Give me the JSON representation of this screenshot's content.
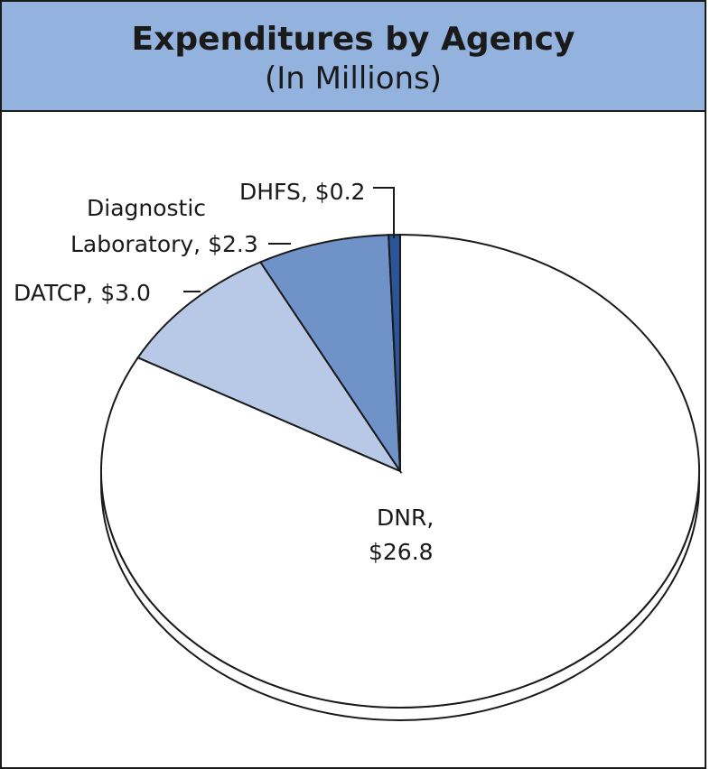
{
  "chart_data": {
    "type": "pie",
    "title": "Expenditures by Agency",
    "subtitle": "(In Millions)",
    "slices": [
      {
        "label": "DNR,",
        "value_label": "$26.8",
        "value": 26.8,
        "color": "#ffffff"
      },
      {
        "label": "DATCP, $3.0",
        "value_label": "",
        "value": 3.0,
        "color": "#b7c9e6"
      },
      {
        "label": "Diagnostic",
        "label2": "Laboratory, $2.3",
        "value": 2.3,
        "color": "#6f92c9"
      },
      {
        "label": "DHFS, $0.2",
        "value_label": "",
        "value": 0.2,
        "color": "#2b5597"
      }
    ]
  }
}
